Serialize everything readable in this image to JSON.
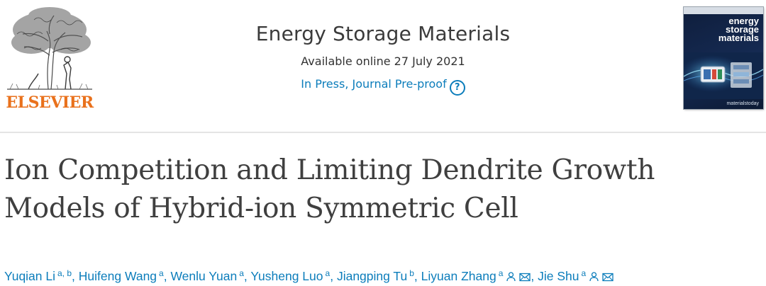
{
  "header": {
    "publisher": {
      "wordmark": "ELSEVIER",
      "icon": "elsevier-tree-icon",
      "brand_color": "#e9711c"
    },
    "journal": {
      "title": "Energy Storage Materials",
      "availability": "Available online 27 July 2021",
      "status": "In Press, Journal Pre-proof",
      "help_glyph": "?",
      "link_color": "#0c7dbb"
    },
    "cover": {
      "title": "energy\nstorage\nmaterials",
      "publisher_mark": "materialstoday",
      "background": "#152a52"
    }
  },
  "article": {
    "title": "Ion Competition and Limiting Dendrite Growth Models of Hybrid-ion Symmetric Cell",
    "authors": [
      {
        "name": "Yuqian Li",
        "affiliations": "a, b",
        "corresponding": false,
        "email": false,
        "separator": ","
      },
      {
        "name": "Huifeng Wang",
        "affiliations": "a",
        "corresponding": false,
        "email": false,
        "separator": ","
      },
      {
        "name": "Wenlu Yuan",
        "affiliations": "a",
        "corresponding": false,
        "email": false,
        "separator": ","
      },
      {
        "name": "Yusheng Luo",
        "affiliations": "a",
        "corresponding": false,
        "email": false,
        "separator": ","
      },
      {
        "name": "Jiangping Tu",
        "affiliations": "b",
        "corresponding": false,
        "email": false,
        "separator": ","
      },
      {
        "name": "Liyuan Zhang",
        "affiliations": "a",
        "corresponding": true,
        "email": true,
        "separator": ","
      },
      {
        "name": "Jie Shu",
        "affiliations": "a",
        "corresponding": true,
        "email": true,
        "separator": ""
      }
    ]
  }
}
